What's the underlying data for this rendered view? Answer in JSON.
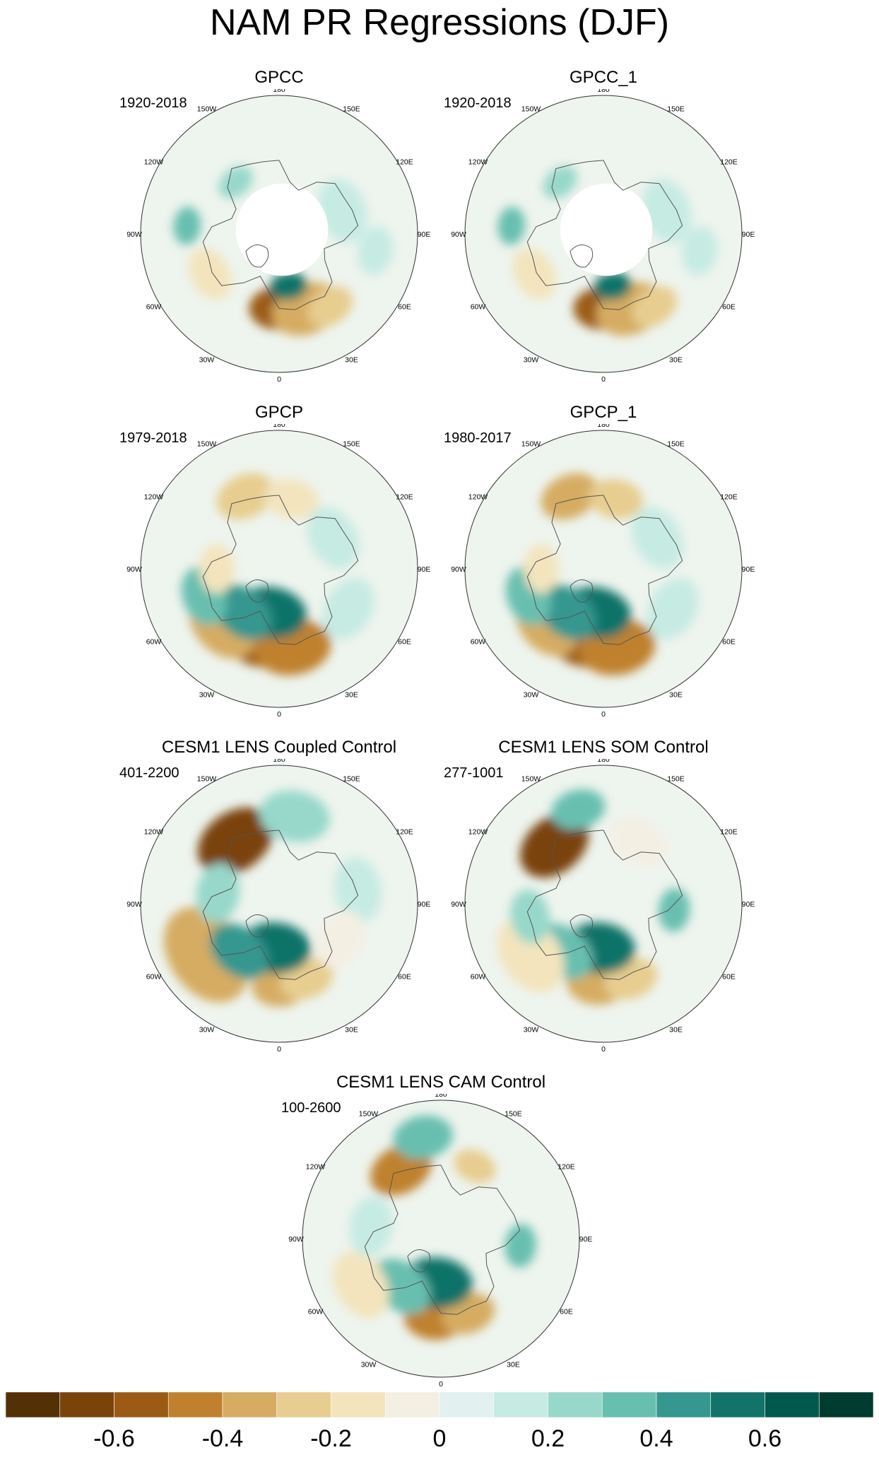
{
  "title": "NAM PR Regressions (DJF)",
  "longitude_labels": [
    "180",
    "150E",
    "120E",
    "90E",
    "60E",
    "30E",
    "0",
    "30W",
    "60W",
    "90W",
    "120W",
    "150W"
  ],
  "panels": [
    {
      "id": "gpcc",
      "title": "GPCC",
      "years": "1920-2018",
      "masked_arctic": true,
      "anomalies": [
        {
          "lon": 0,
          "colat": 42,
          "size": 22,
          "value": -0.6
        },
        {
          "lon": 20,
          "colat": 45,
          "size": 26,
          "value": -0.4
        },
        {
          "lon": 35,
          "colat": 50,
          "size": 18,
          "value": -0.3
        },
        {
          "lon": 10,
          "colat": 30,
          "size": 14,
          "value": 0.5
        },
        {
          "lon": -95,
          "colat": 52,
          "size": 14,
          "value": 0.3
        },
        {
          "lon": -140,
          "colat": 38,
          "size": 14,
          "value": 0.25
        },
        {
          "lon": 110,
          "colat": 38,
          "size": 24,
          "value": 0.15
        },
        {
          "lon": 80,
          "colat": 55,
          "size": 18,
          "value": 0.1
        },
        {
          "lon": -60,
          "colat": 45,
          "size": 20,
          "value": -0.15
        }
      ]
    },
    {
      "id": "gpcc-1",
      "title": "GPCC_1",
      "years": "1920-2018",
      "masked_arctic": true,
      "anomalies": [
        {
          "lon": 0,
          "colat": 42,
          "size": 22,
          "value": -0.6
        },
        {
          "lon": 20,
          "colat": 45,
          "size": 26,
          "value": -0.4
        },
        {
          "lon": 35,
          "colat": 50,
          "size": 18,
          "value": -0.3
        },
        {
          "lon": 10,
          "colat": 30,
          "size": 14,
          "value": 0.5
        },
        {
          "lon": -95,
          "colat": 52,
          "size": 14,
          "value": 0.3
        },
        {
          "lon": -140,
          "colat": 38,
          "size": 14,
          "value": 0.25
        },
        {
          "lon": 110,
          "colat": 38,
          "size": 24,
          "value": 0.15
        },
        {
          "lon": 80,
          "colat": 55,
          "size": 18,
          "value": 0.1
        },
        {
          "lon": -60,
          "colat": 45,
          "size": 20,
          "value": -0.15
        }
      ]
    },
    {
      "id": "gpcp",
      "title": "GPCP",
      "years": "1979-2018",
      "masked_arctic": false,
      "anomalies": [
        {
          "lon": -15,
          "colat": 40,
          "size": 30,
          "value": -0.6
        },
        {
          "lon": 10,
          "colat": 45,
          "size": 28,
          "value": -0.5
        },
        {
          "lon": -45,
          "colat": 45,
          "size": 28,
          "value": -0.4
        },
        {
          "lon": -10,
          "colat": 25,
          "size": 26,
          "value": 0.6
        },
        {
          "lon": -40,
          "colat": 32,
          "size": 24,
          "value": 0.4
        },
        {
          "lon": -70,
          "colat": 45,
          "size": 22,
          "value": 0.3
        },
        {
          "lon": -155,
          "colat": 45,
          "size": 22,
          "value": -0.3
        },
        {
          "lon": 170,
          "colat": 40,
          "size": 20,
          "value": -0.2
        },
        {
          "lon": 120,
          "colat": 35,
          "size": 24,
          "value": 0.15
        },
        {
          "lon": -90,
          "colat": 35,
          "size": 18,
          "value": -0.2
        },
        {
          "lon": 60,
          "colat": 45,
          "size": 24,
          "value": 0.12
        }
      ]
    },
    {
      "id": "gpcp-1",
      "title": "GPCP_1",
      "years": "1980-2017",
      "masked_arctic": false,
      "anomalies": [
        {
          "lon": -15,
          "colat": 40,
          "size": 30,
          "value": -0.6
        },
        {
          "lon": 10,
          "colat": 45,
          "size": 28,
          "value": -0.5
        },
        {
          "lon": -45,
          "colat": 45,
          "size": 26,
          "value": -0.35
        },
        {
          "lon": -10,
          "colat": 25,
          "size": 26,
          "value": 0.6
        },
        {
          "lon": -40,
          "colat": 32,
          "size": 24,
          "value": 0.4
        },
        {
          "lon": -70,
          "colat": 45,
          "size": 22,
          "value": 0.3
        },
        {
          "lon": -155,
          "colat": 45,
          "size": 22,
          "value": -0.35
        },
        {
          "lon": 170,
          "colat": 40,
          "size": 20,
          "value": -0.25
        },
        {
          "lon": 120,
          "colat": 35,
          "size": 24,
          "value": 0.15
        },
        {
          "lon": -90,
          "colat": 35,
          "size": 18,
          "value": -0.2
        },
        {
          "lon": 60,
          "colat": 45,
          "size": 24,
          "value": 0.12
        }
      ]
    },
    {
      "id": "cesm1-coupled",
      "title": "CESM1 LENS Coupled Control",
      "years": "401-2200",
      "masked_arctic": false,
      "anomalies": [
        {
          "lon": -145,
          "colat": 43,
          "size": 30,
          "value": -0.7
        },
        {
          "lon": -55,
          "colat": 50,
          "size": 38,
          "value": -0.35
        },
        {
          "lon": 0,
          "colat": 47,
          "size": 20,
          "value": -0.4
        },
        {
          "lon": 20,
          "colat": 45,
          "size": 20,
          "value": -0.3
        },
        {
          "lon": -5,
          "colat": 25,
          "size": 26,
          "value": 0.6
        },
        {
          "lon": -40,
          "colat": 35,
          "size": 24,
          "value": 0.4
        },
        {
          "lon": 170,
          "colat": 50,
          "size": 26,
          "value": 0.2
        },
        {
          "lon": -100,
          "colat": 35,
          "size": 22,
          "value": 0.2
        },
        {
          "lon": 100,
          "colat": 45,
          "size": 24,
          "value": 0.1
        },
        {
          "lon": 60,
          "colat": 40,
          "size": 22,
          "value": -0.1
        }
      ]
    },
    {
      "id": "cesm1-som",
      "title": "CESM1 LENS SOM Control",
      "years": "277-1001",
      "masked_arctic": false,
      "anomalies": [
        {
          "lon": -140,
          "colat": 43,
          "size": 28,
          "value": -0.65
        },
        {
          "lon": -165,
          "colat": 55,
          "size": 20,
          "value": 0.35
        },
        {
          "lon": -5,
          "colat": 45,
          "size": 22,
          "value": -0.4
        },
        {
          "lon": 20,
          "colat": 45,
          "size": 20,
          "value": -0.3
        },
        {
          "lon": -5,
          "colat": 25,
          "size": 26,
          "value": 0.55
        },
        {
          "lon": -40,
          "colat": 35,
          "size": 24,
          "value": 0.35
        },
        {
          "lon": -55,
          "colat": 50,
          "size": 30,
          "value": -0.15
        },
        {
          "lon": -80,
          "colat": 42,
          "size": 20,
          "value": 0.2
        },
        {
          "lon": 85,
          "colat": 40,
          "size": 16,
          "value": 0.3
        },
        {
          "lon": 150,
          "colat": 40,
          "size": 22,
          "value": -0.1
        }
      ]
    },
    {
      "id": "cesm1-cam",
      "title": "CESM1 LENS CAM Control",
      "years": "100-2600",
      "masked_arctic": false,
      "anomalies": [
        {
          "lon": -150,
          "colat": 45,
          "size": 24,
          "value": -0.5
        },
        {
          "lon": -170,
          "colat": 58,
          "size": 22,
          "value": 0.35
        },
        {
          "lon": -5,
          "colat": 45,
          "size": 22,
          "value": -0.45
        },
        {
          "lon": 20,
          "colat": 45,
          "size": 20,
          "value": -0.35
        },
        {
          "lon": -5,
          "colat": 25,
          "size": 26,
          "value": 0.6
        },
        {
          "lon": -40,
          "colat": 35,
          "size": 24,
          "value": 0.35
        },
        {
          "lon": -60,
          "colat": 52,
          "size": 26,
          "value": -0.15
        },
        {
          "lon": 155,
          "colat": 45,
          "size": 16,
          "value": -0.3
        },
        {
          "lon": 85,
          "colat": 45,
          "size": 16,
          "value": 0.3
        },
        {
          "lon": -100,
          "colat": 40,
          "size": 22,
          "value": 0.15
        }
      ]
    }
  ],
  "colorbar": {
    "colors": [
      "#543005",
      "#7a4309",
      "#9b5b14",
      "#bf812d",
      "#d6ac62",
      "#e7cd8f",
      "#f3e4bd",
      "#f4efe3",
      "#e2f0ef",
      "#c6ebe3",
      "#97d8ca",
      "#67bfb0",
      "#35978f",
      "#117369",
      "#01594e",
      "#003c30"
    ],
    "labels": [
      {
        "text": "-0.6",
        "value": -0.6
      },
      {
        "text": "-0.4",
        "value": -0.4
      },
      {
        "text": "-0.2",
        "value": -0.2
      },
      {
        "text": "0",
        "value": 0
      },
      {
        "text": "0.2",
        "value": 0.2
      },
      {
        "text": "0.4",
        "value": 0.4
      },
      {
        "text": "0.6",
        "value": 0.6
      }
    ],
    "min": -0.8,
    "max": 0.8
  }
}
